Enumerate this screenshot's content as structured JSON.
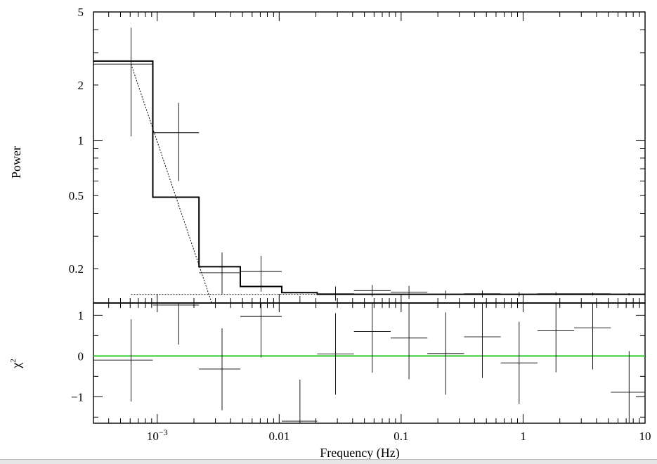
{
  "chart_data": [
    {
      "type": "line",
      "panel": "top",
      "ylabel": "Power",
      "xscale": "log",
      "yscale": "log",
      "xlim": [
        0.0003,
        10
      ],
      "ylim": [
        0.13,
        5
      ],
      "yticks": [
        {
          "v": 0.2,
          "label": "0.2"
        },
        {
          "v": 0.5,
          "label": "0.5"
        },
        {
          "v": 1,
          "label": "1"
        },
        {
          "v": 2,
          "label": "2"
        },
        {
          "v": 5,
          "label": "5"
        }
      ],
      "data_points": [
        {
          "x": 0.00061,
          "xlo": 0.0003,
          "xhi": 0.00092,
          "y": 2.6,
          "ylo": 1.05,
          "yhi": 4.1
        },
        {
          "x": 0.0015,
          "xlo": 0.00092,
          "xhi": 0.0022,
          "y": 1.1,
          "ylo": 0.6,
          "yhi": 1.6
        },
        {
          "x": 0.0034,
          "xlo": 0.0022,
          "xhi": 0.0048,
          "y": 0.19,
          "ylo": 0.145,
          "yhi": 0.245
        },
        {
          "x": 0.0071,
          "xlo": 0.0048,
          "xhi": 0.0105,
          "y": 0.193,
          "ylo": 0.15,
          "yhi": 0.235
        },
        {
          "x": 0.0148,
          "xlo": 0.0105,
          "xhi": 0.0205,
          "y": 0.13,
          "ylo": 0.122,
          "yhi": 0.142
        },
        {
          "x": 0.029,
          "xlo": 0.0205,
          "xhi": 0.041,
          "y": 0.146,
          "ylo": 0.134,
          "yhi": 0.16
        },
        {
          "x": 0.058,
          "xlo": 0.041,
          "xhi": 0.082,
          "y": 0.152,
          "ylo": 0.141,
          "yhi": 0.163
        },
        {
          "x": 0.116,
          "xlo": 0.082,
          "xhi": 0.164,
          "y": 0.149,
          "ylo": 0.137,
          "yhi": 0.161
        },
        {
          "x": 0.232,
          "xlo": 0.164,
          "xhi": 0.328,
          "y": 0.145,
          "ylo": 0.137,
          "yhi": 0.152
        },
        {
          "x": 0.464,
          "xlo": 0.328,
          "xhi": 0.656,
          "y": 0.146,
          "ylo": 0.139,
          "yhi": 0.152
        },
        {
          "x": 0.928,
          "xlo": 0.656,
          "xhi": 1.31,
          "y": 0.145,
          "ylo": 0.141,
          "yhi": 0.149
        },
        {
          "x": 1.86,
          "xlo": 1.31,
          "xhi": 2.62,
          "y": 0.146,
          "ylo": 0.143,
          "yhi": 0.149
        },
        {
          "x": 3.72,
          "xlo": 2.62,
          "xhi": 5.25,
          "y": 0.146,
          "ylo": 0.143,
          "yhi": 0.148
        },
        {
          "x": 7.4,
          "xlo": 5.25,
          "xhi": 10,
          "y": 0.145,
          "ylo": 0.143,
          "yhi": 0.147
        }
      ],
      "model_steps": [
        {
          "xlo": 0.0003,
          "xhi": 0.00092,
          "y": 2.7
        },
        {
          "xlo": 0.00092,
          "xhi": 0.0022,
          "y": 0.49
        },
        {
          "xlo": 0.0022,
          "xhi": 0.0048,
          "y": 0.205
        },
        {
          "xlo": 0.0048,
          "xhi": 0.0105,
          "y": 0.16
        },
        {
          "xlo": 0.0105,
          "xhi": 0.0205,
          "y": 0.148
        },
        {
          "xlo": 0.0205,
          "xhi": 10,
          "y": 0.145
        }
      ],
      "component_powerlaw": [
        {
          "x": 0.00061,
          "y": 2.6
        },
        {
          "x": 0.0028,
          "y": 0.13
        }
      ],
      "component_constant": {
        "xlo": 0.00061,
        "xhi": 0.0205,
        "y": 0.145
      }
    },
    {
      "type": "scatter",
      "panel": "bottom",
      "ylabel": "χ",
      "ylabel_sup": "2",
      "xlabel": "Frequency (Hz)",
      "xscale": "log",
      "xlim": [
        0.0003,
        10
      ],
      "ylim": [
        -1.65,
        1.3
      ],
      "yticks": [
        {
          "v": -1,
          "label": "−1"
        },
        {
          "v": 0,
          "label": "0"
        },
        {
          "v": 1,
          "label": "1"
        }
      ],
      "xticks": [
        {
          "v": 0.001,
          "label": "10",
          "sup": "−3"
        },
        {
          "v": 0.01,
          "label": "0.01",
          "sup": ""
        },
        {
          "v": 0.1,
          "label": "0.1",
          "sup": ""
        },
        {
          "v": 1,
          "label": "1",
          "sup": ""
        },
        {
          "v": 10,
          "label": "10",
          "sup": ""
        }
      ],
      "zero_line_color": "#2ecc2e",
      "residuals": [
        {
          "x": 0.00061,
          "xlo": 0.0003,
          "xhi": 0.00092,
          "y": -0.1,
          "ylo": -1.12,
          "yhi": 0.9
        },
        {
          "x": 0.0015,
          "xlo": 0.00092,
          "xhi": 0.0022,
          "y": 1.25,
          "ylo": 0.28,
          "yhi": 1.3
        },
        {
          "x": 0.0034,
          "xlo": 0.0022,
          "xhi": 0.0048,
          "y": -0.32,
          "ylo": -1.33,
          "yhi": 0.68
        },
        {
          "x": 0.0071,
          "xlo": 0.0048,
          "xhi": 0.0105,
          "y": 0.97,
          "ylo": -0.04,
          "yhi": 1.3
        },
        {
          "x": 0.0148,
          "xlo": 0.0105,
          "xhi": 0.0205,
          "y": -1.6,
          "ylo": -1.65,
          "yhi": -0.58
        },
        {
          "x": 0.029,
          "xlo": 0.0205,
          "xhi": 0.041,
          "y": 0.05,
          "ylo": -0.95,
          "yhi": 1.05
        },
        {
          "x": 0.058,
          "xlo": 0.041,
          "xhi": 0.082,
          "y": 0.6,
          "ylo": -0.41,
          "yhi": 1.3
        },
        {
          "x": 0.116,
          "xlo": 0.082,
          "xhi": 0.164,
          "y": 0.44,
          "ylo": -0.57,
          "yhi": 1.3
        },
        {
          "x": 0.232,
          "xlo": 0.164,
          "xhi": 0.328,
          "y": 0.06,
          "ylo": -0.95,
          "yhi": 1.07
        },
        {
          "x": 0.464,
          "xlo": 0.328,
          "xhi": 0.656,
          "y": 0.47,
          "ylo": -0.54,
          "yhi": 1.3
        },
        {
          "x": 0.928,
          "xlo": 0.656,
          "xhi": 1.31,
          "y": -0.17,
          "ylo": -1.18,
          "yhi": 0.84
        },
        {
          "x": 1.86,
          "xlo": 1.31,
          "xhi": 2.62,
          "y": 0.62,
          "ylo": -0.4,
          "yhi": 1.3
        },
        {
          "x": 3.72,
          "xlo": 2.62,
          "xhi": 5.25,
          "y": 0.69,
          "ylo": -0.33,
          "yhi": 1.3
        },
        {
          "x": 7.4,
          "xlo": 5.25,
          "xhi": 10,
          "y": -0.89,
          "ylo": -1.65,
          "yhi": 0.12
        }
      ]
    }
  ]
}
